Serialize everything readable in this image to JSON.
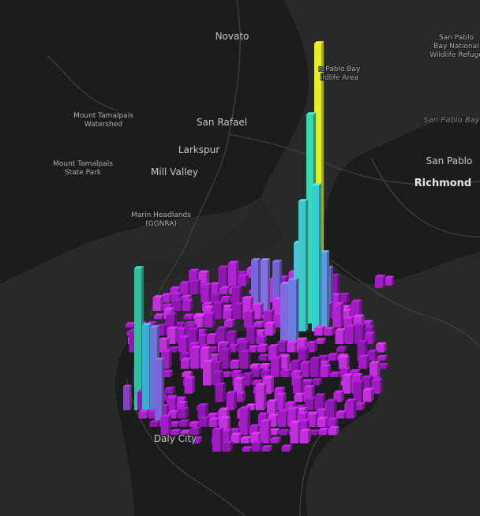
{
  "map": {
    "labels": [
      {
        "lines": [
          "Novato"
        ]
      },
      {
        "lines": [
          "San Pablo",
          "Bay National",
          "Wildlife Refuge"
        ]
      },
      {
        "lines": [
          "n Pablo Bay",
          "ildlife Area"
        ]
      },
      {
        "lines": [
          "Mount Tamalpais",
          "Watershed"
        ]
      },
      {
        "lines": [
          "San Rafael"
        ]
      },
      {
        "lines": [
          "San Pablo Bay"
        ]
      },
      {
        "lines": [
          "Larkspur"
        ]
      },
      {
        "lines": [
          "Mount Tamalpais",
          "State Park"
        ]
      },
      {
        "lines": [
          "Mill Valley"
        ]
      },
      {
        "lines": [
          "San Pablo"
        ]
      },
      {
        "lines": [
          "Richmond"
        ]
      },
      {
        "lines": [
          "Marin Headlands",
          "(GGNRA)"
        ]
      },
      {
        "lines": [
          "Daly City"
        ]
      }
    ]
  }
}
